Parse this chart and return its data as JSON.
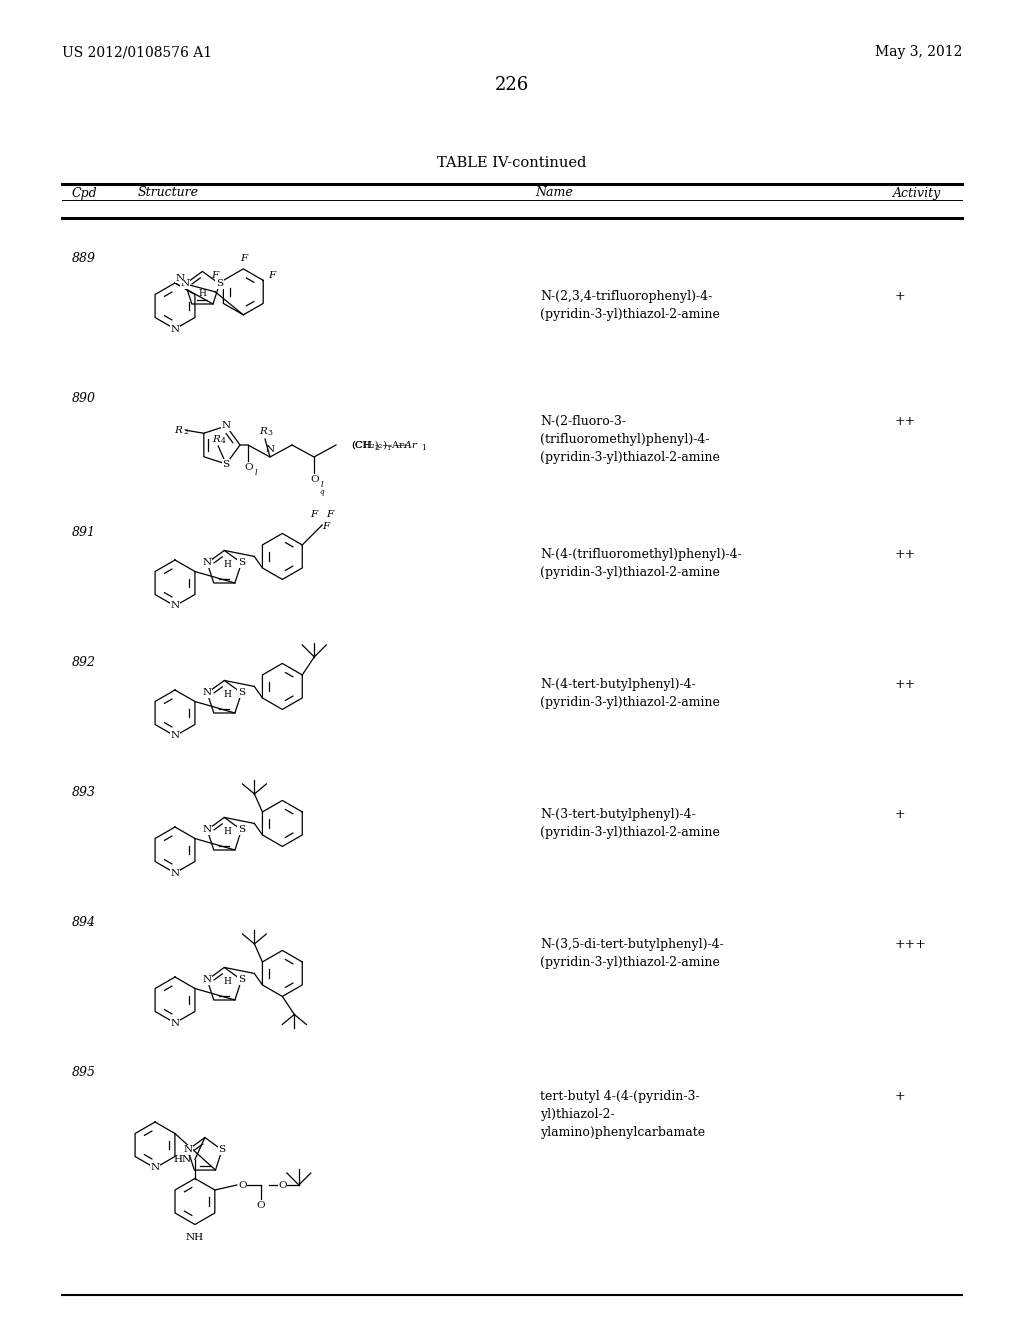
{
  "page_number": "226",
  "patent_left": "US 2012/0108576 A1",
  "patent_right": "May 3, 2012",
  "table_title": "TABLE IV-continued",
  "col_cpd": "Cpd",
  "col_structure": "Structure",
  "col_name": "Name",
  "col_activity": "Activity",
  "background_color": "#ffffff",
  "text_color": "#000000",
  "compounds": [
    {
      "cpd": "889",
      "name": "N-(2,3,4-trifluorophenyl)-4-\n(pyridin-3-yl)thiazol-2-amine",
      "activity": "+"
    },
    {
      "cpd": "890",
      "name": "N-(2-fluoro-3-\n(trifluoromethyl)phenyl)-4-\n(pyridin-3-yl)thiazol-2-amine",
      "activity": "++"
    },
    {
      "cpd": "891",
      "name": "N-(4-(trifluoromethyl)phenyl)-4-\n(pyridin-3-yl)thiazol-2-amine",
      "activity": "++"
    },
    {
      "cpd": "892",
      "name": "N-(4-tert-butylphenyl)-4-\n(pyridin-3-yl)thiazol-2-amine",
      "activity": "++"
    },
    {
      "cpd": "893",
      "name": "N-(3-tert-butylphenyl)-4-\n(pyridin-3-yl)thiazol-2-amine",
      "activity": "+"
    },
    {
      "cpd": "894",
      "name": "N-(3,5-di-tert-butylphenyl)-4-\n(pyridin-3-yl)thiazol-2-amine",
      "activity": "+++"
    },
    {
      "cpd": "895",
      "name": "tert-butyl 4-(4-(pyridin-3-\nyl)thiazol-2-\nylamino)phenylcarbamate",
      "activity": "+"
    }
  ]
}
